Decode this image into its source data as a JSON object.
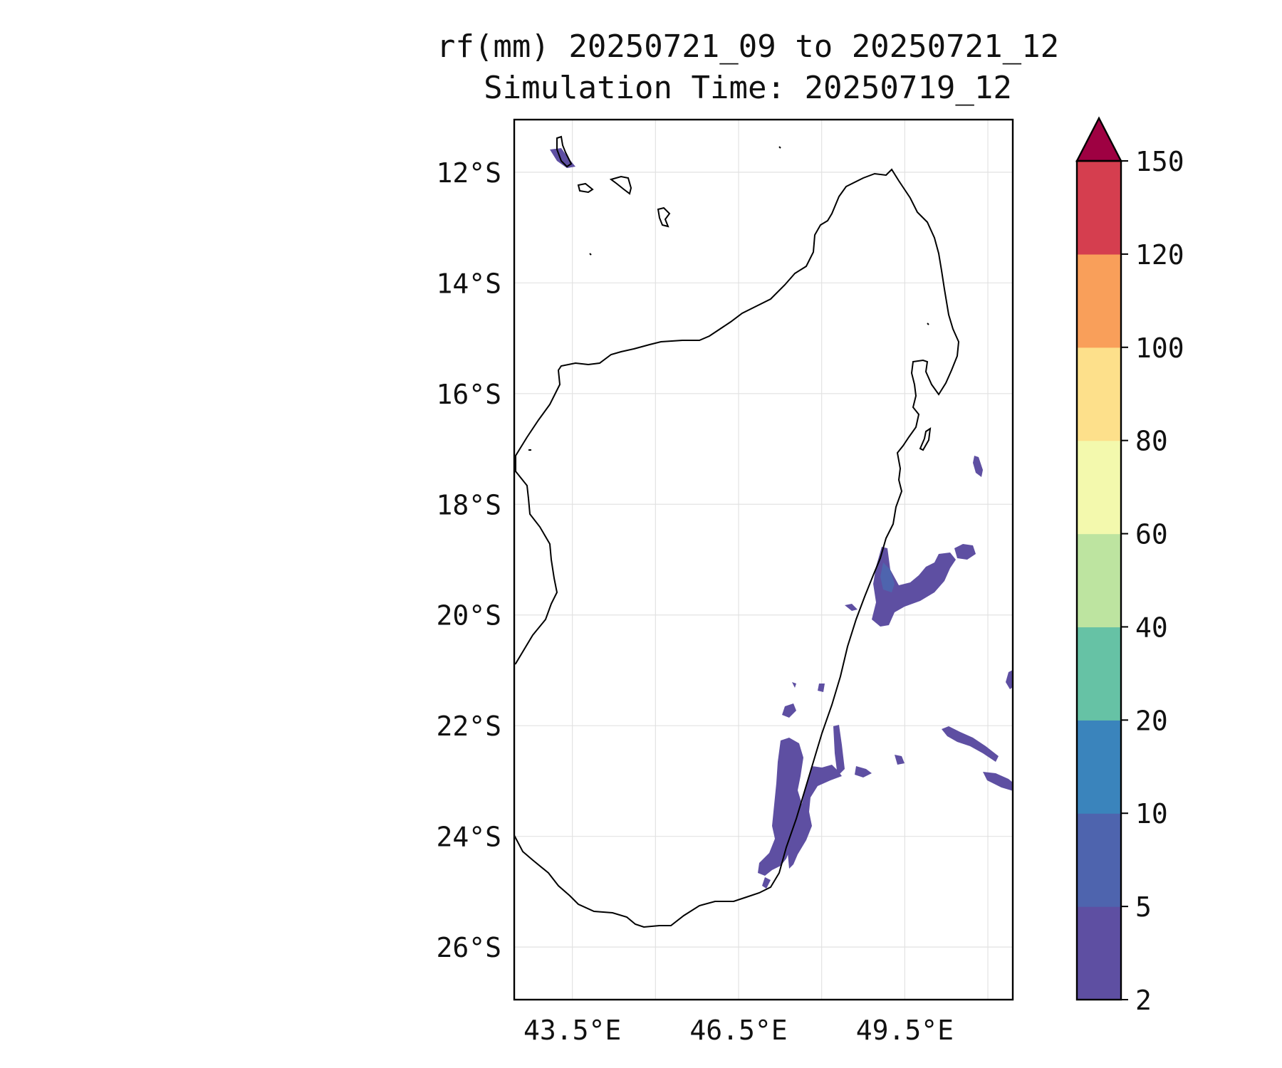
{
  "title": {
    "line1": "rf(mm) 20250721_09 to 20250721_12",
    "line2": "Simulation Time: 20250719_12"
  },
  "map": {
    "region": "Madagascar",
    "lat_range": [
      -26.95,
      -11.05
    ],
    "lon_range": [
      42.45,
      51.45
    ],
    "lat_ticks": [
      {
        "value": -12,
        "label": "12°S"
      },
      {
        "value": -14,
        "label": "14°S"
      },
      {
        "value": -16,
        "label": "16°S"
      },
      {
        "value": -18,
        "label": "18°S"
      },
      {
        "value": -20,
        "label": "20°S"
      },
      {
        "value": -22,
        "label": "22°S"
      },
      {
        "value": -24,
        "label": "24°S"
      },
      {
        "value": -26,
        "label": "26°S"
      }
    ],
    "lon_ticks": [
      {
        "value": 43.5,
        "label": "43.5°E"
      },
      {
        "value": 46.5,
        "label": "46.5°E"
      },
      {
        "value": 49.5,
        "label": "49.5°E"
      }
    ],
    "lon_grid": [
      43.5,
      45,
      46.5,
      48,
      49.5,
      51
    ],
    "grid": true
  },
  "colorbar": {
    "levels": [
      2,
      5,
      10,
      20,
      40,
      60,
      80,
      100,
      120,
      150
    ],
    "level_labels": [
      "2",
      "5",
      "10",
      "20",
      "40",
      "60",
      "80",
      "100",
      "120",
      "150"
    ],
    "colors": [
      "#5e4fa2",
      "#4e64ae",
      "#3a84bc",
      "#66c2a5",
      "#bde4a0",
      "#f3f9ad",
      "#fde08b",
      "#f99f5a",
      "#d53e4f"
    ],
    "extend_color": "#9e0142",
    "extend": "max"
  }
}
